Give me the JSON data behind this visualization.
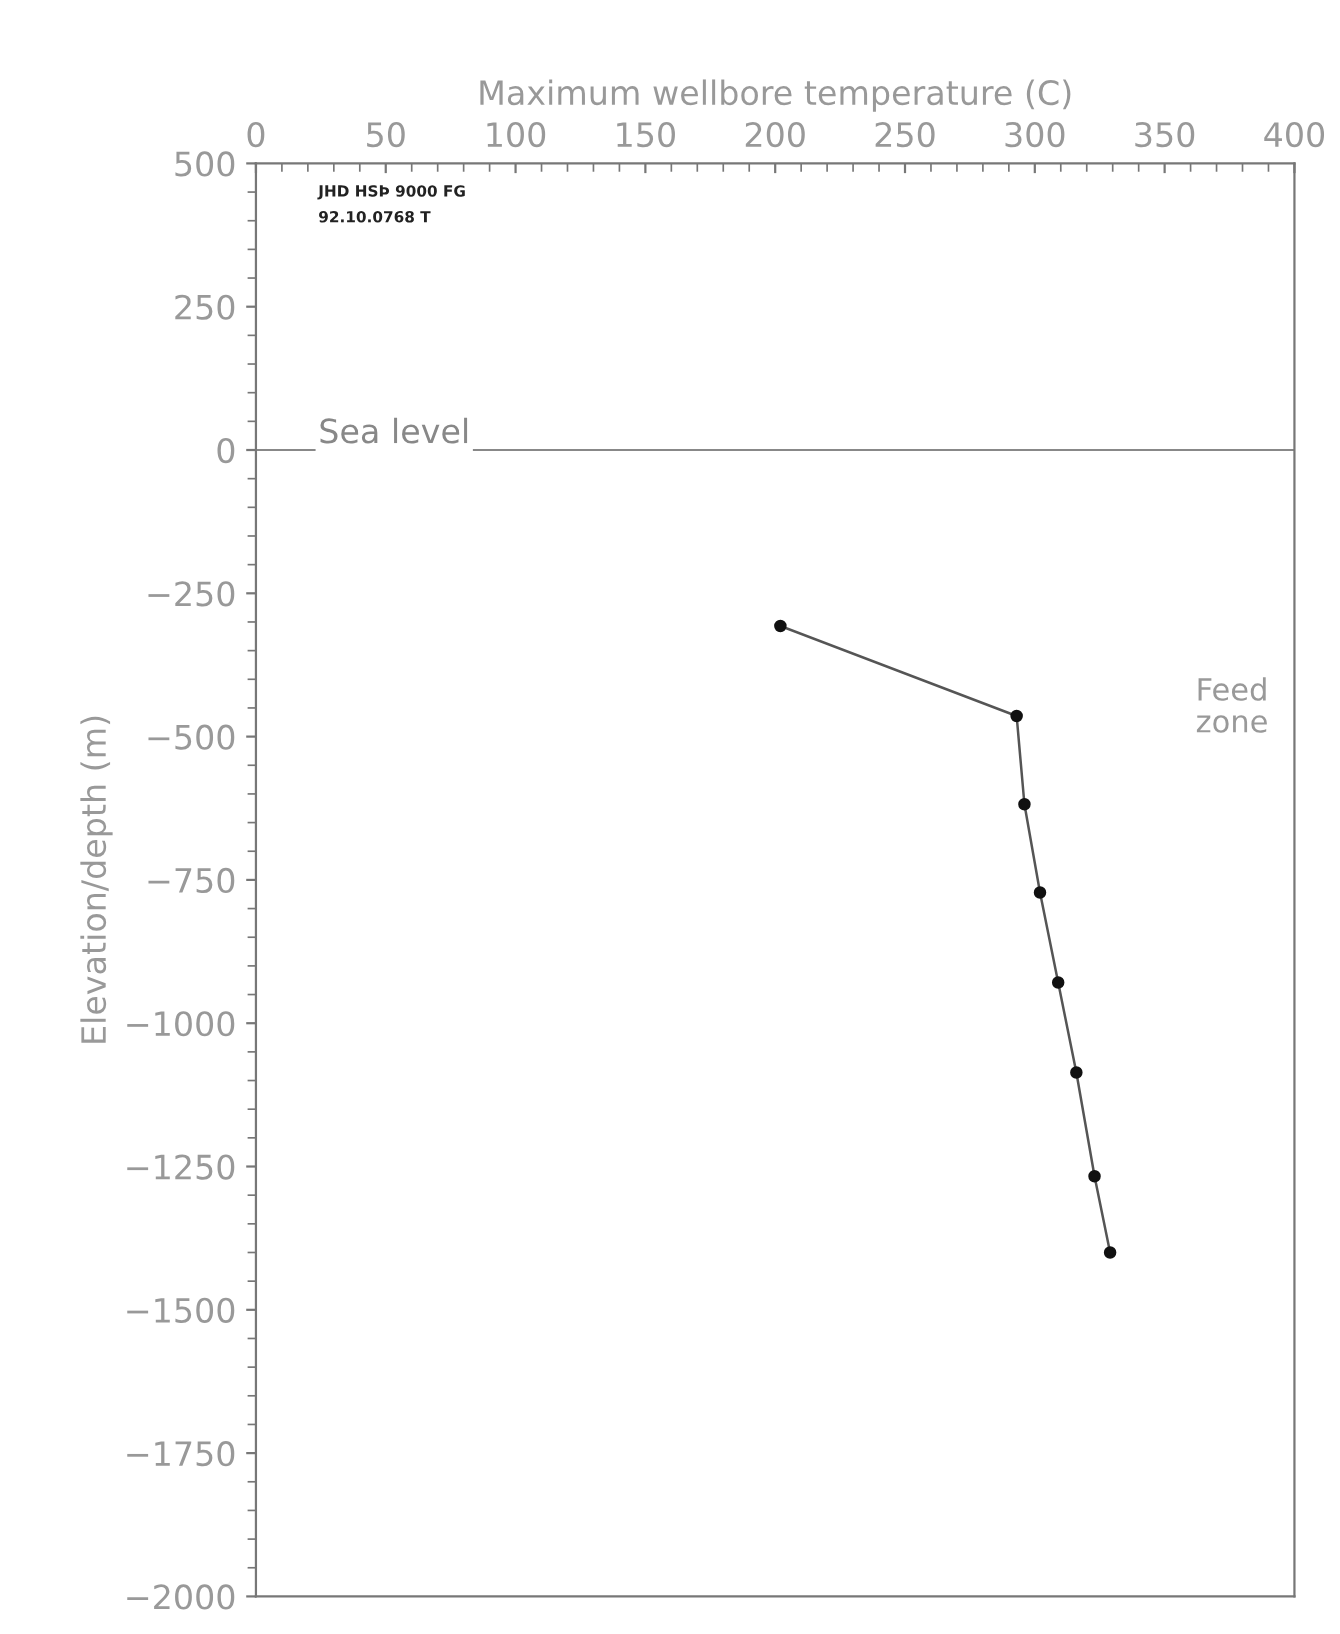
{
  "chart_data": {
    "type": "line",
    "xlabel": "Maximum wellbore temperature (C)",
    "ylabel": "Elevation/depth (m)",
    "x": [
      202,
      293,
      296,
      302,
      309,
      316,
      323,
      329
    ],
    "series": [
      {
        "color": "#555555",
        "values": [
          -307,
          -464,
          -618,
          -772,
          -929,
          -1086,
          -1267,
          -1400
        ]
      }
    ],
    "marker": "circle",
    "line_style": "solid",
    "xlim": [
      0,
      400
    ],
    "xticks": [
      0,
      50,
      100,
      150,
      200,
      250,
      300,
      350,
      400
    ],
    "ylim": [
      -2000,
      500
    ],
    "yticks": [
      500,
      250,
      0,
      -250,
      -500,
      -750,
      -1000,
      -1250,
      -1500,
      -1750,
      -2000
    ],
    "grid": false,
    "ref_lines": [
      {
        "axis": "y",
        "value": 0,
        "label": "Sea level",
        "color": "#888888"
      }
    ],
    "annotations": [
      "Feed\nzone",
      "JHD HSÞ 9000 FG",
      "92.10.0768 T"
    ]
  }
}
